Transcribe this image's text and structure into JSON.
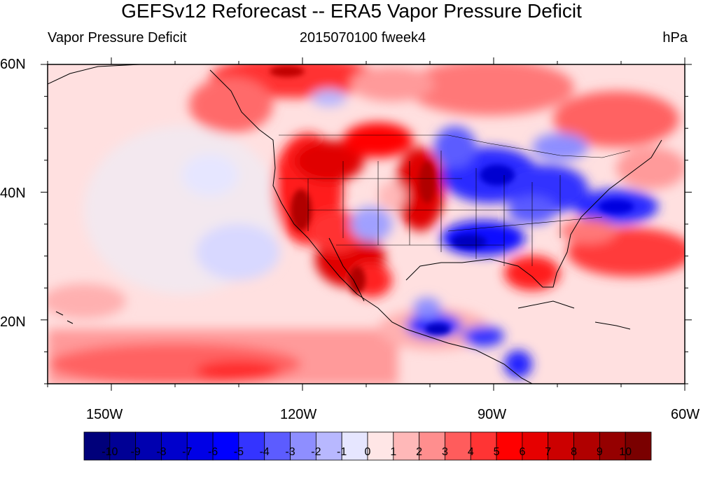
{
  "title": "GEFSv12 Reforecast -- ERA5 Vapor Pressure Deficit",
  "left_subtitle": "Vapor Pressure Deficit",
  "center_subtitle": "2015070100 fweek4",
  "right_subtitle": "hPa",
  "lat_labels": [
    "60N",
    "40N",
    "20N"
  ],
  "lon_labels": [
    "150W",
    "120W",
    "90W",
    "60W"
  ],
  "colorbar": {
    "labels": [
      "-10",
      "-9",
      "-8",
      "-7",
      "-6",
      "-5",
      "-4",
      "-3",
      "-2",
      "-1",
      "0",
      "1",
      "2",
      "3",
      "4",
      "5",
      "6",
      "7",
      "8",
      "9",
      "10"
    ],
    "colors": [
      "#00007a",
      "#000095",
      "#0000b0",
      "#0000cc",
      "#0000e6",
      "#0000ff",
      "#3434ff",
      "#5c5cff",
      "#8e8eff",
      "#b8b8ff",
      "#e6e6ff",
      "#ffe6e6",
      "#ffb8b8",
      "#ff8e8e",
      "#ff5c5c",
      "#ff3434",
      "#ff0000",
      "#e60000",
      "#cc0000",
      "#b00000",
      "#950000",
      "#7a0000"
    ]
  },
  "chart_data": {
    "type": "heatmap",
    "title": "GEFSv12 Reforecast -- ERA5 Vapor Pressure Deficit",
    "units": "hPa",
    "lat_range": [
      10,
      60
    ],
    "lon_range": [
      -160,
      -60
    ],
    "value_range": [
      -10,
      10
    ]
  }
}
